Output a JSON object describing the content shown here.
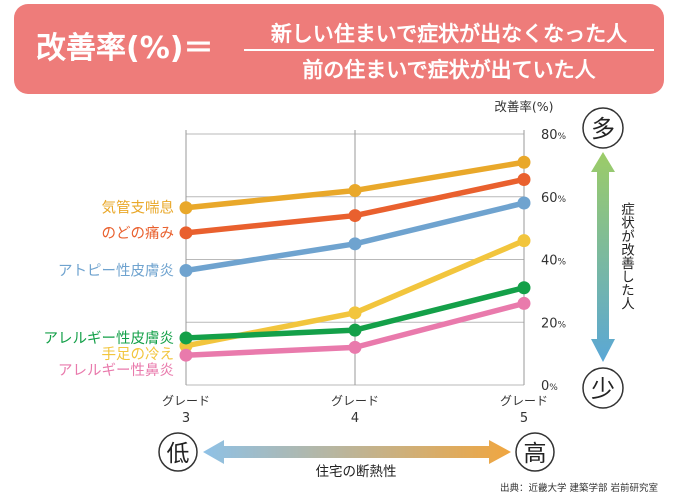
{
  "formula": {
    "lhs": "改善率(%)＝",
    "numerator": "新しい住まいで症状が出なくなった人",
    "denominator": "前の住まいで症状が出ていた人"
  },
  "chart_data": {
    "type": "line",
    "ylabel": "改善率(%)",
    "ylim": [
      0,
      80
    ],
    "yticks": [
      {
        "value": 0,
        "num": "0",
        "unit": "%"
      },
      {
        "value": 20,
        "num": "20",
        "unit": "%"
      },
      {
        "value": 40,
        "num": "40",
        "unit": "%"
      },
      {
        "value": 60,
        "num": "60",
        "unit": "%"
      },
      {
        "value": 80,
        "num": "80",
        "unit": "%"
      }
    ],
    "categories": [
      {
        "x": 3,
        "line1": "グレード",
        "line2": "3"
      },
      {
        "x": 4,
        "line1": "グレード",
        "line2": "4"
      },
      {
        "x": 5,
        "line1": "グレード",
        "line2": "5"
      }
    ],
    "grid": true,
    "series": [
      {
        "name": "気管支喘息",
        "color": "#e9a82a",
        "values": [
          56.5,
          62,
          71
        ]
      },
      {
        "name": "のどの痛み",
        "color": "#e9602e",
        "values": [
          48.5,
          54,
          65.5
        ]
      },
      {
        "name": "アトピー性皮膚炎",
        "color": "#6fa3cf",
        "values": [
          36.5,
          45,
          58
        ]
      },
      {
        "name": "手足の冷え",
        "color": "#f2c53d",
        "values": [
          12.5,
          23,
          46
        ]
      },
      {
        "name": "アレルギー性皮膚炎",
        "color": "#14a049",
        "values": [
          15,
          17.5,
          31
        ]
      },
      {
        "name": "アレルギー性鼻炎",
        "color": "#e97aac",
        "values": [
          9.5,
          12,
          26
        ]
      }
    ],
    "legend_order": [
      0,
      1,
      2,
      4,
      3,
      5
    ],
    "right_scale": {
      "top": "多",
      "bottom": "少",
      "label": "症状が改善した人"
    },
    "bottom_scale": {
      "left": "低",
      "right": "高",
      "label": "住宅の断熱性"
    }
  },
  "source": "出典：近畿大学 建築学部 岩前研究室"
}
